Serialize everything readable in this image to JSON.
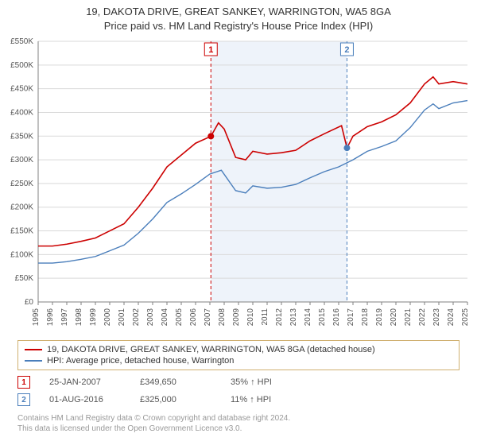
{
  "title_line1": "19, DAKOTA DRIVE, GREAT SANKEY, WARRINGTON, WA5 8GA",
  "title_line2": "Price paid vs. HM Land Registry's House Price Index (HPI)",
  "chart": {
    "type": "line",
    "background_color": "#ffffff",
    "grid_color": "#d9d9d9",
    "axis_color": "#808080",
    "axis_font_size": 10,
    "x_start_year": 1995,
    "x_end_year": 2025,
    "x_tick_step": 1,
    "ylim": [
      0,
      550000
    ],
    "ytick_step": 50000,
    "ytick_prefix": "£",
    "ytick_suffix": "K",
    "shaded_band": {
      "from_year": 2007.07,
      "to_year": 2016.58,
      "fill": "#eef3fa"
    },
    "series": [
      {
        "name": "19, DAKOTA DRIVE, GREAT SANKEY, WARRINGTON, WA5 8GA (detached house)",
        "color": "#cc0000",
        "line_width": 1.6,
        "xy": [
          [
            1995,
            118000
          ],
          [
            1996,
            118000
          ],
          [
            1997,
            122000
          ],
          [
            1998,
            128000
          ],
          [
            1999,
            135000
          ],
          [
            2000,
            150000
          ],
          [
            2001,
            165000
          ],
          [
            2002,
            200000
          ],
          [
            2003,
            240000
          ],
          [
            2004,
            285000
          ],
          [
            2005,
            310000
          ],
          [
            2006,
            335000
          ],
          [
            2007.07,
            349650
          ],
          [
            2007.6,
            378000
          ],
          [
            2008,
            365000
          ],
          [
            2008.8,
            305000
          ],
          [
            2009.5,
            300000
          ],
          [
            2010,
            318000
          ],
          [
            2011,
            312000
          ],
          [
            2012,
            315000
          ],
          [
            2013,
            320000
          ],
          [
            2014,
            340000
          ],
          [
            2015,
            355000
          ],
          [
            2016.2,
            372000
          ],
          [
            2016.58,
            325000
          ],
          [
            2017,
            350000
          ],
          [
            2018,
            370000
          ],
          [
            2019,
            380000
          ],
          [
            2020,
            395000
          ],
          [
            2021,
            420000
          ],
          [
            2022,
            460000
          ],
          [
            2022.6,
            475000
          ],
          [
            2023,
            460000
          ],
          [
            2024,
            465000
          ],
          [
            2025,
            460000
          ]
        ]
      },
      {
        "name": "HPI: Average price, detached house, Warrington",
        "color": "#4a7ebb",
        "line_width": 1.4,
        "xy": [
          [
            1995,
            82000
          ],
          [
            1996,
            82000
          ],
          [
            1997,
            85000
          ],
          [
            1998,
            90000
          ],
          [
            1999,
            96000
          ],
          [
            2000,
            108000
          ],
          [
            2001,
            120000
          ],
          [
            2002,
            145000
          ],
          [
            2003,
            175000
          ],
          [
            2004,
            210000
          ],
          [
            2005,
            228000
          ],
          [
            2006,
            248000
          ],
          [
            2007,
            270000
          ],
          [
            2007.8,
            278000
          ],
          [
            2008.8,
            235000
          ],
          [
            2009.5,
            230000
          ],
          [
            2010,
            245000
          ],
          [
            2011,
            240000
          ],
          [
            2012,
            242000
          ],
          [
            2013,
            248000
          ],
          [
            2014,
            262000
          ],
          [
            2015,
            275000
          ],
          [
            2016,
            285000
          ],
          [
            2017,
            300000
          ],
          [
            2018,
            318000
          ],
          [
            2019,
            328000
          ],
          [
            2020,
            340000
          ],
          [
            2021,
            368000
          ],
          [
            2022,
            405000
          ],
          [
            2022.6,
            418000
          ],
          [
            2023,
            408000
          ],
          [
            2024,
            420000
          ],
          [
            2025,
            425000
          ]
        ]
      }
    ],
    "event_markers": [
      {
        "id": "1",
        "year": 2007.07,
        "y": 349650,
        "color": "#cc0000",
        "dash": "4,3"
      },
      {
        "id": "2",
        "year": 2016.58,
        "y": 325000,
        "color": "#4a7ebb",
        "dash": "4,3"
      }
    ]
  },
  "legend": {
    "border_color": "#d0b070",
    "items": [
      {
        "color": "#cc0000",
        "label": "19, DAKOTA DRIVE, GREAT SANKEY, WARRINGTON, WA5 8GA (detached house)"
      },
      {
        "color": "#4a7ebb",
        "label": "HPI: Average price, detached house, Warrington"
      }
    ]
  },
  "events": [
    {
      "id": "1",
      "color": "#cc0000",
      "date": "25-JAN-2007",
      "price": "£349,650",
      "delta": "35% ↑ HPI"
    },
    {
      "id": "2",
      "color": "#4a7ebb",
      "date": "01-AUG-2016",
      "price": "£325,000",
      "delta": "11% ↑ HPI"
    }
  ],
  "footnote_line1": "Contains HM Land Registry data © Crown copyright and database right 2024.",
  "footnote_line2": "This data is licensed under the Open Government Licence v3.0."
}
